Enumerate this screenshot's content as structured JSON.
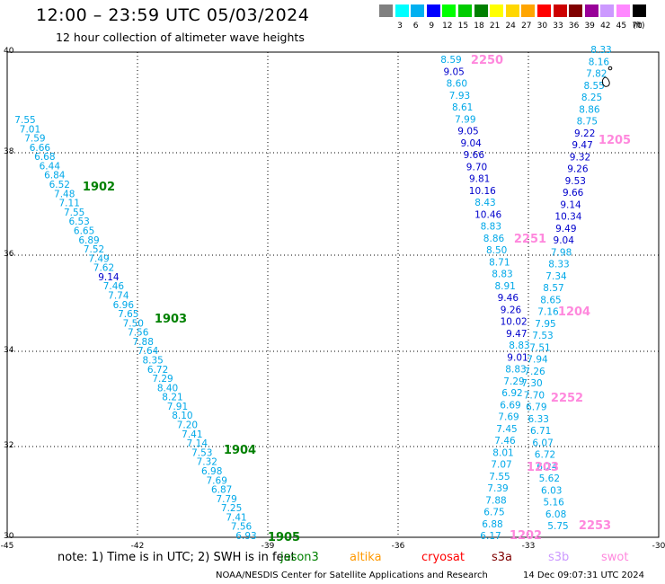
{
  "title": "12:00 – 23:59 UTC 05/03/2024",
  "subtitle": "12 hour collection of altimeter wave heights",
  "legend": {
    "unit": "(ft)",
    "bins": [
      {
        "label": "3",
        "color": "#808080"
      },
      {
        "label": "6",
        "color": "#00ffff"
      },
      {
        "label": "9",
        "color": "#00b0f0"
      },
      {
        "label": "12",
        "color": "#0000ff"
      },
      {
        "label": "15",
        "color": "#00ff00"
      },
      {
        "label": "18",
        "color": "#00cc00"
      },
      {
        "label": "21",
        "color": "#008000"
      },
      {
        "label": "24",
        "color": "#ffff00"
      },
      {
        "label": "27",
        "color": "#ffd700"
      },
      {
        "label": "30",
        "color": "#ffa500"
      },
      {
        "label": "33",
        "color": "#ff0000"
      },
      {
        "label": "36",
        "color": "#cc0000"
      },
      {
        "label": "39",
        "color": "#800000"
      },
      {
        "label": "42",
        "color": "#990099"
      },
      {
        "label": "45",
        "color": "#cc99ff"
      },
      {
        "label": "70",
        "color": "#ff88ff"
      },
      {
        "label": "",
        "color": "#000000"
      }
    ]
  },
  "map": {
    "lon_labels": [
      "-45",
      "-42",
      "-39",
      "-36",
      "-33",
      "-30"
    ],
    "lat_labels": [
      "40",
      "38",
      "36",
      "34",
      "32",
      "30"
    ],
    "pass_times": [
      {
        "text": "1902",
        "color": "#008000"
      },
      {
        "text": "1903",
        "color": "#008000"
      },
      {
        "text": "1904",
        "color": "#008000"
      },
      {
        "text": "1905",
        "color": "#008000"
      },
      {
        "text": "2250",
        "color": "#ff88dd"
      },
      {
        "text": "2251",
        "color": "#ff88dd"
      },
      {
        "text": "1205",
        "color": "#ff88dd"
      },
      {
        "text": "1204",
        "color": "#ff88dd"
      },
      {
        "text": "2252",
        "color": "#ff88dd"
      },
      {
        "text": "1203",
        "color": "#ff88dd"
      },
      {
        "text": "1202",
        "color": "#ff88dd"
      },
      {
        "text": "2253",
        "color": "#ff88dd"
      }
    ],
    "track_1900": [
      "7.55",
      "7.01",
      "7.59",
      "6.66",
      "6.68",
      "6.44",
      "6.84",
      "6.52",
      "7.48",
      "7.11",
      "7.55",
      "6.53",
      "6.65",
      "6.89",
      "7.52",
      "7.49",
      "7.62",
      "9.14",
      "7.46",
      "7.74",
      "6.96",
      "7.65",
      "7.50",
      "7.56",
      "7.88",
      "7.64",
      "8.35",
      "6.72",
      "7.29",
      "8.40",
      "8.21",
      "7.91",
      "8.10",
      "7.20",
      "7.41",
      "7.14",
      "7.53",
      "7.32",
      "6.98",
      "7.69",
      "6.87",
      "7.79",
      "7.25",
      "7.41",
      "7.56",
      "6.93"
    ],
    "track_2250": [
      "8.59",
      "9.05",
      "8.60",
      "7.93",
      "8.61",
      "7.99",
      "9.05",
      "9.04",
      "9.66",
      "9.70",
      "9.81",
      "10.16",
      "8.43",
      "10.46",
      "8.83",
      "8.86",
      "8.50",
      "8.71",
      "8.83",
      "8.91",
      "9.46",
      "9.26",
      "10.02",
      "9.47",
      "8.83",
      "9.01",
      "8.83",
      "7.29",
      "6.92",
      "6.69",
      "7.69",
      "7.45",
      "7.46",
      "8.01",
      "7.07",
      "7.55",
      "7.39",
      "7.88",
      "6.75",
      "6.88",
      "6.17"
    ],
    "track_1200": [
      "8.33",
      "8.16",
      "7.82",
      "8.55",
      "8.25",
      "8.86",
      "8.75",
      "9.22",
      "9.47",
      "9.32",
      "9.26",
      "9.53",
      "9.66",
      "9.14",
      "10.34",
      "9.49",
      "9.04",
      "7.98",
      "8.33",
      "7.34",
      "8.57",
      "8.65",
      "7.16",
      "7.95",
      "7.53",
      "7.51",
      "7.94",
      "7.26",
      "7.30",
      "7.70",
      "6.79",
      "6.33",
      "6.71",
      "6.07",
      "6.72",
      "6.24",
      "5.62",
      "6.03",
      "5.16",
      "6.08",
      "5.75"
    ]
  },
  "footnote": "note:  1) Time is in UTC;  2) SWH is in feet",
  "satellites": [
    {
      "name": "jason3",
      "color": "#008000"
    },
    {
      "name": "altika",
      "color": "#ff9900"
    },
    {
      "name": "cryosat",
      "color": "#ff0000"
    },
    {
      "name": "s3a",
      "color": "#800000"
    },
    {
      "name": "s3b",
      "color": "#cc99ff"
    },
    {
      "name": "swot",
      "color": "#ff88dd"
    }
  ],
  "credit": "NOAA/NESDIS Center for Satellite Applications and Research",
  "timestamp": "14 Dec 09:07:31 UTC 2024"
}
